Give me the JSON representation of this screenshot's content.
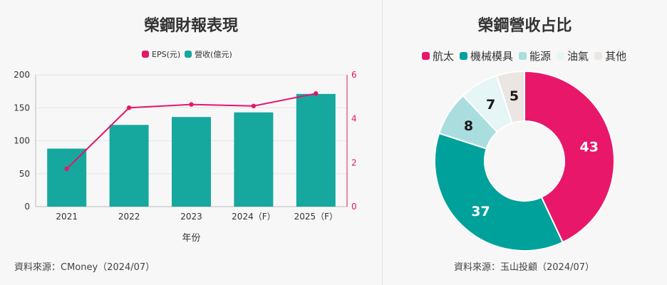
{
  "chart_data": [
    {
      "type": "bar",
      "title": "榮鋼財報表現",
      "xlabel": "年份",
      "categories": [
        "2021",
        "2022",
        "2023",
        "2024（F）",
        "2025（F）"
      ],
      "series": [
        {
          "name": "營收(億元)",
          "type": "bar",
          "axis": "left",
          "color": "#16a89e",
          "values": [
            88,
            124,
            136,
            143,
            171
          ]
        },
        {
          "name": "EPS(元)",
          "type": "line",
          "axis": "right",
          "color": "#e3176a",
          "values": [
            1.72,
            4.5,
            4.65,
            4.58,
            5.15
          ]
        }
      ],
      "ylim": [
        0,
        200
      ],
      "yticks": [
        "0",
        "50",
        "100",
        "150",
        "200"
      ],
      "y2lim": [
        0,
        6
      ],
      "y2ticks": [
        "0",
        "2",
        "4",
        "6"
      ],
      "grid": true,
      "legend_position": "top-center",
      "source": "資料來源：CMoney（2024/07）"
    },
    {
      "type": "pie",
      "title": "榮鋼營收占比",
      "categories": [
        "航太",
        "機械模具",
        "能源",
        "油氣",
        "其他"
      ],
      "values": [
        43,
        37,
        8,
        7,
        5
      ],
      "colors": [
        "#e8176a",
        "#00a19a",
        "#aadede",
        "#e6f5f5",
        "#ebe6e2"
      ],
      "label_colors": [
        "#ffffff",
        "#ffffff",
        "#1a1a1a",
        "#1a1a1a",
        "#1a1a1a"
      ],
      "donut": true,
      "legend_position": "top-center",
      "source": "資料來源：玉山投顧（2024/07）"
    }
  ]
}
